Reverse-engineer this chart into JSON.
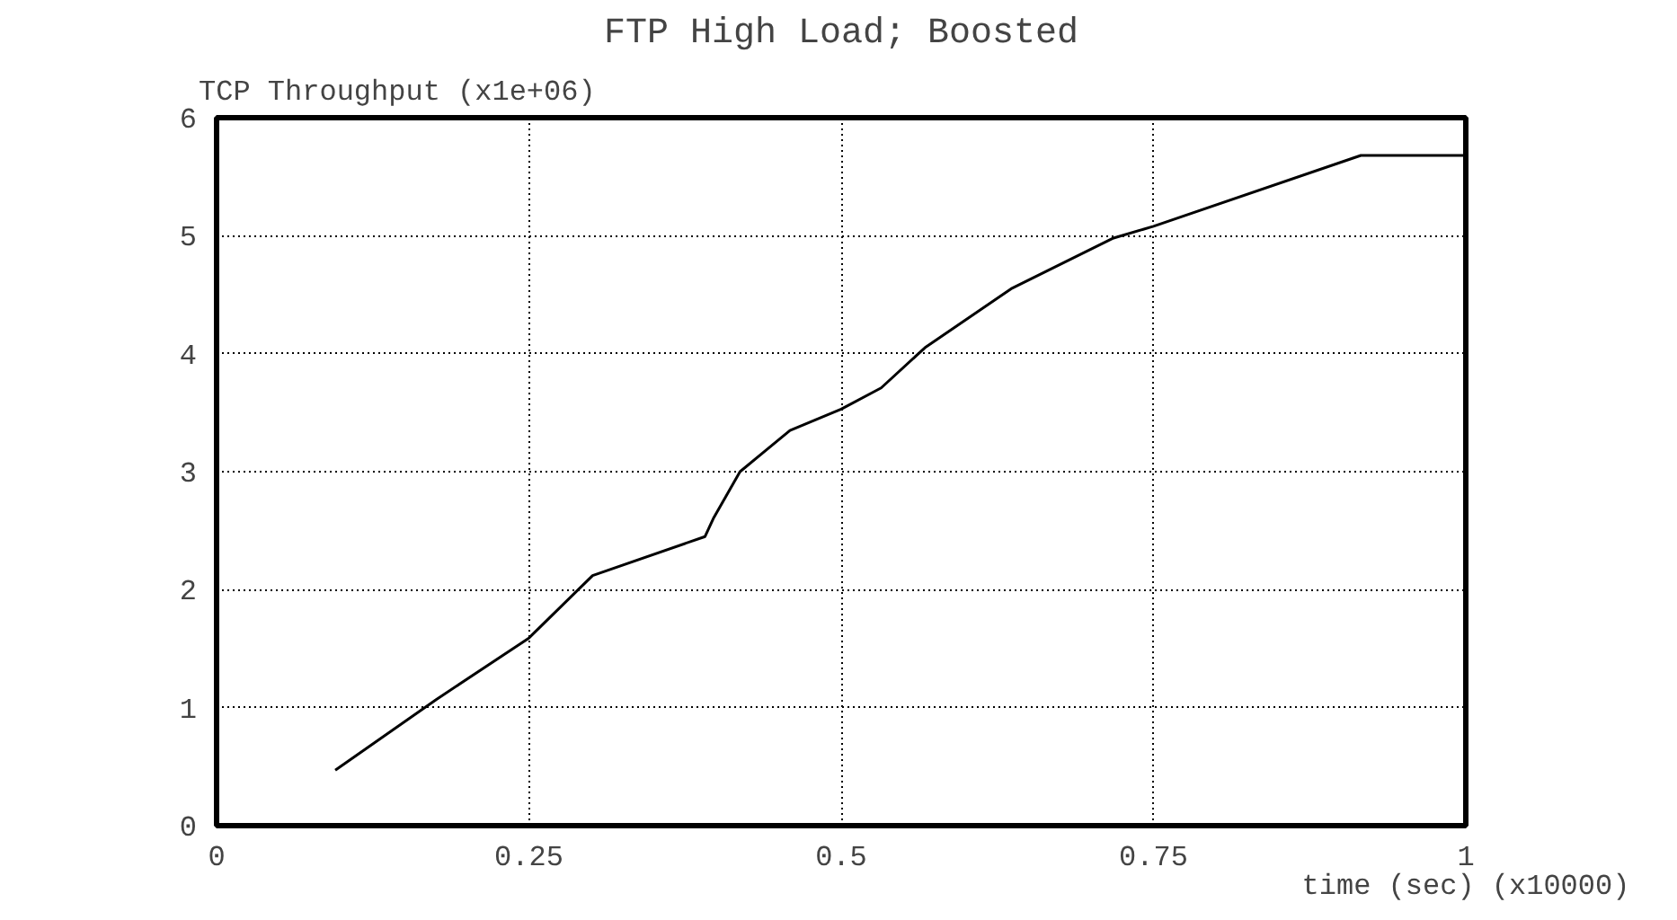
{
  "chart_data": {
    "type": "line",
    "title": "FTP High Load; Boosted",
    "ylabel": "TCP Throughput (x1e+06)",
    "xlabel": "time (sec) (x10000)",
    "x": [
      0.095,
      0.176,
      0.25,
      0.301,
      0.391,
      0.398,
      0.419,
      0.459,
      0.5,
      0.532,
      0.567,
      0.636,
      0.718,
      0.75,
      0.916,
      1.0
    ],
    "series": [
      {
        "color": "#000000",
        "values": [
          0.47,
          1.07,
          1.59,
          2.12,
          2.45,
          2.61,
          3.0,
          3.35,
          3.53,
          3.71,
          4.05,
          4.55,
          4.98,
          5.08,
          5.68,
          5.68
        ]
      }
    ],
    "xlim": [
      0,
      1
    ],
    "ylim": [
      0,
      6
    ],
    "xticks": [
      0,
      0.25,
      0.5,
      0.75,
      1
    ],
    "yticks": [
      0,
      1,
      2,
      3,
      4,
      5,
      6
    ],
    "grid": true,
    "line_style": "solid",
    "marker": "none"
  }
}
